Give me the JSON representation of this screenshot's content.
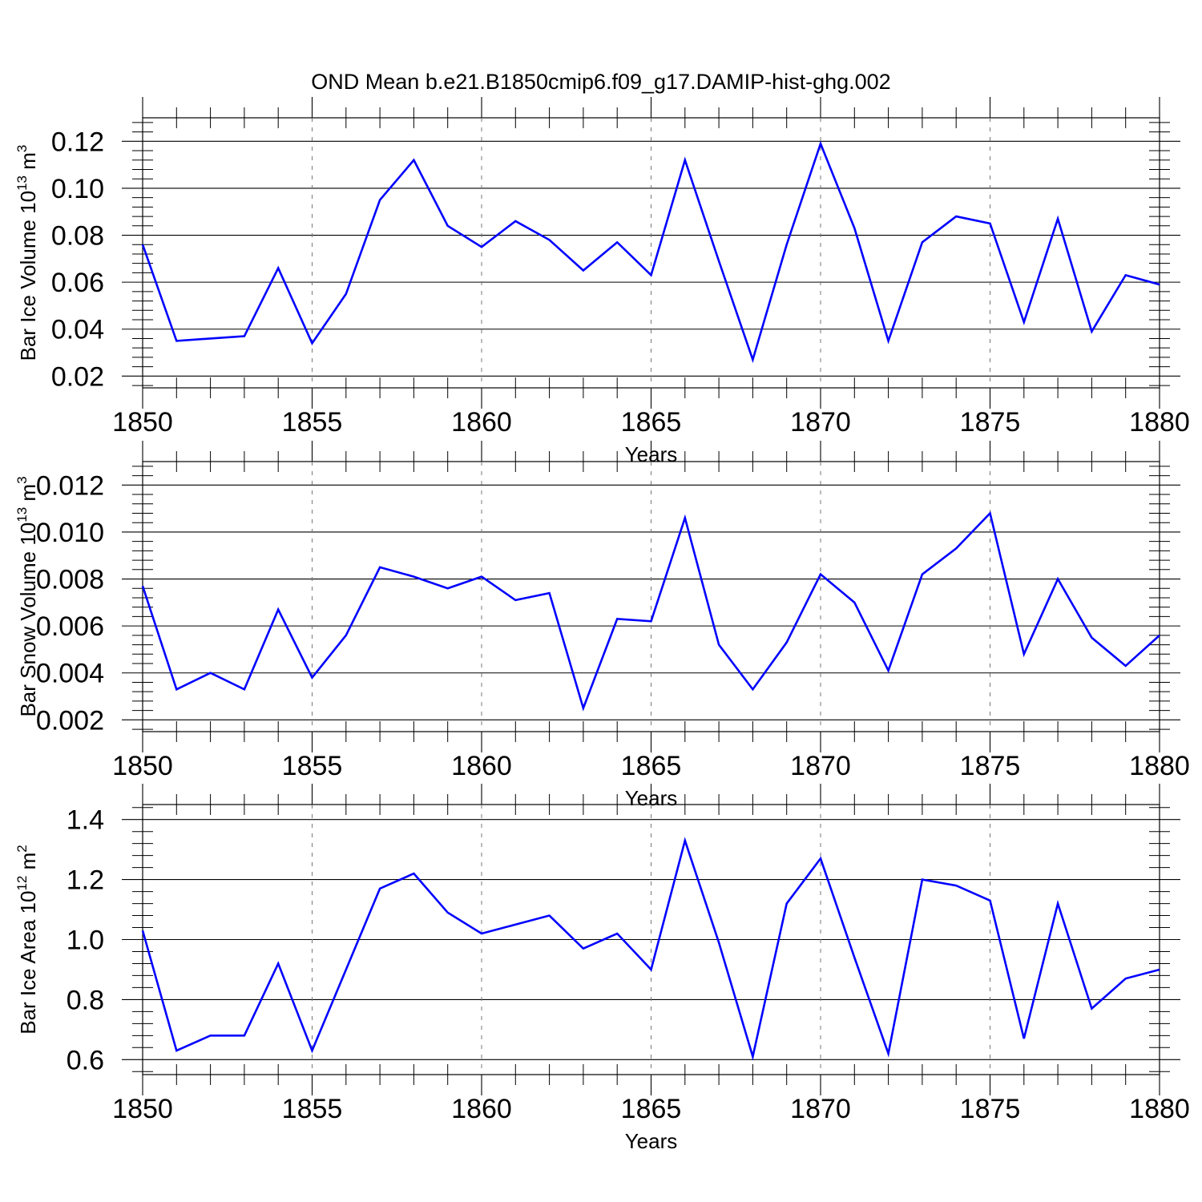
{
  "figure": {
    "title": "OND Mean b.e21.B1850cmip6.f09_g17.DAMIP-hist-ghg.002"
  },
  "chart_data": [
    {
      "type": "line",
      "title": "OND Mean b.e21.B1850cmip6.f09_g17.DAMIP-hist-ghg.002",
      "xlabel": "Years",
      "ylabel": "Bar Ice Volume 10",
      "ylabel_exponent": "13",
      "ylabel_unit": "m",
      "ylabel_unit_exponent": "3",
      "xlim": [
        1850,
        1880
      ],
      "ylim": [
        0.015,
        0.13
      ],
      "x_ticks": [
        "1850",
        "1855",
        "1860",
        "1865",
        "1870",
        "1875",
        "1880"
      ],
      "y_ticks": [
        "0.02",
        "0.04",
        "0.06",
        "0.08",
        "0.10",
        "0.12"
      ],
      "grid": "vertical dashed at major x ticks",
      "line_color": "#0000ff",
      "series": [
        {
          "name": "Bar Ice Volume",
          "x": [
            1850,
            1851,
            1852,
            1853,
            1854,
            1855,
            1856,
            1857,
            1858,
            1859,
            1860,
            1861,
            1862,
            1863,
            1864,
            1865,
            1866,
            1867,
            1868,
            1869,
            1870,
            1871,
            1872,
            1873,
            1874,
            1875,
            1876,
            1877,
            1878,
            1879,
            1880
          ],
          "values": [
            0.076,
            0.035,
            0.036,
            0.037,
            0.066,
            0.034,
            0.055,
            0.095,
            0.112,
            0.084,
            0.075,
            0.086,
            0.078,
            0.065,
            0.077,
            0.063,
            0.112,
            0.069,
            0.027,
            0.076,
            0.119,
            0.083,
            0.035,
            0.077,
            0.088,
            0.085,
            0.043,
            0.087,
            0.039,
            0.063,
            0.059
          ]
        }
      ]
    },
    {
      "type": "line",
      "xlabel": "Years",
      "ylabel": "Bar Snow Volume 10",
      "ylabel_exponent": "13",
      "ylabel_unit": "m",
      "ylabel_unit_exponent": "3",
      "xlim": [
        1850,
        1880
      ],
      "ylim": [
        0.0015,
        0.013
      ],
      "x_ticks": [
        "1850",
        "1855",
        "1860",
        "1865",
        "1870",
        "1875",
        "1880"
      ],
      "y_ticks": [
        "0.002",
        "0.004",
        "0.006",
        "0.008",
        "0.010",
        "0.012"
      ],
      "grid": "vertical dashed at major x ticks",
      "line_color": "#0000ff",
      "series": [
        {
          "name": "Bar Snow Volume",
          "x": [
            1850,
            1851,
            1852,
            1853,
            1854,
            1855,
            1856,
            1857,
            1858,
            1859,
            1860,
            1861,
            1862,
            1863,
            1864,
            1865,
            1866,
            1867,
            1868,
            1869,
            1870,
            1871,
            1872,
            1873,
            1874,
            1875,
            1876,
            1877,
            1878,
            1879,
            1880
          ],
          "values": [
            0.0077,
            0.0033,
            0.004,
            0.0033,
            0.0067,
            0.0038,
            0.0056,
            0.0085,
            0.0081,
            0.0076,
            0.0081,
            0.0071,
            0.0074,
            0.0025,
            0.0063,
            0.0062,
            0.0106,
            0.0052,
            0.0033,
            0.0053,
            0.0082,
            0.007,
            0.0041,
            0.0082,
            0.0093,
            0.0108,
            0.0048,
            0.008,
            0.0055,
            0.0043,
            0.0056
          ]
        }
      ]
    },
    {
      "type": "line",
      "xlabel": "Years",
      "ylabel": "Bar Ice Area 10",
      "ylabel_exponent": "12",
      "ylabel_unit": "m",
      "ylabel_unit_exponent": "2",
      "xlim": [
        1850,
        1880
      ],
      "ylim": [
        0.55,
        1.45
      ],
      "x_ticks": [
        "1850",
        "1855",
        "1860",
        "1865",
        "1870",
        "1875",
        "1880"
      ],
      "y_ticks": [
        "0.6",
        "0.8",
        "1.0",
        "1.2",
        "1.4"
      ],
      "grid": "vertical dashed at major x ticks",
      "line_color": "#0000ff",
      "series": [
        {
          "name": "Bar Ice Area",
          "x": [
            1850,
            1851,
            1852,
            1853,
            1854,
            1855,
            1856,
            1857,
            1858,
            1859,
            1860,
            1861,
            1862,
            1863,
            1864,
            1865,
            1866,
            1867,
            1868,
            1869,
            1870,
            1871,
            1872,
            1873,
            1874,
            1875,
            1876,
            1877,
            1878,
            1879,
            1880
          ],
          "values": [
            1.03,
            0.63,
            0.68,
            0.68,
            0.92,
            0.63,
            0.9,
            1.17,
            1.22,
            1.09,
            1.02,
            1.05,
            1.08,
            0.97,
            1.02,
            0.9,
            1.33,
            0.99,
            0.61,
            1.12,
            1.27,
            0.94,
            0.62,
            1.2,
            1.18,
            1.13,
            0.67,
            1.12,
            0.77,
            0.87,
            0.9
          ]
        }
      ]
    }
  ]
}
